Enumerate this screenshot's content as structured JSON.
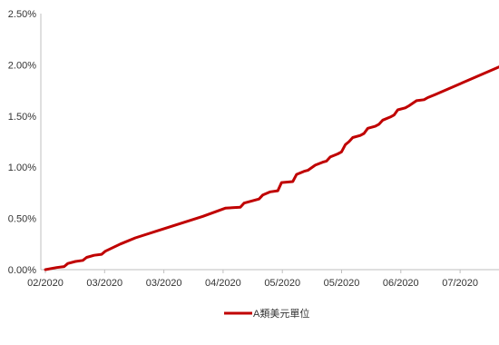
{
  "chart_data": {
    "type": "line",
    "title": "",
    "xlabel": "",
    "ylabel": "",
    "y_ticks": [
      "0.00%",
      "0.50%",
      "1.00%",
      "1.50%",
      "2.00%",
      "2.50%"
    ],
    "x_ticks": [
      "02/2020",
      "03/2020",
      "03/2020",
      "04/2020",
      "05/2020",
      "05/2020",
      "06/2020",
      "07/2020"
    ],
    "ylim": [
      0,
      2.5
    ],
    "grid": false,
    "legend_position": "bottom-center",
    "series": [
      {
        "name": "A類美元單位",
        "color": "#c00000",
        "points": [
          [
            0,
            0.0
          ],
          [
            3,
            0.02
          ],
          [
            5,
            0.03
          ],
          [
            6,
            0.06
          ],
          [
            8,
            0.08
          ],
          [
            10,
            0.09
          ],
          [
            11,
            0.12
          ],
          [
            13,
            0.14
          ],
          [
            15,
            0.15
          ],
          [
            16,
            0.18
          ],
          [
            20,
            0.25
          ],
          [
            24,
            0.31
          ],
          [
            30,
            0.38
          ],
          [
            36,
            0.45
          ],
          [
            42,
            0.52
          ],
          [
            48,
            0.6
          ],
          [
            52,
            0.61
          ],
          [
            53,
            0.65
          ],
          [
            55,
            0.67
          ],
          [
            57,
            0.69
          ],
          [
            58,
            0.73
          ],
          [
            60,
            0.76
          ],
          [
            62,
            0.77
          ],
          [
            63,
            0.85
          ],
          [
            66,
            0.86
          ],
          [
            67,
            0.93
          ],
          [
            69,
            0.96
          ],
          [
            70,
            0.97
          ],
          [
            72,
            1.02
          ],
          [
            74,
            1.05
          ],
          [
            75,
            1.06
          ],
          [
            76,
            1.1
          ],
          [
            78,
            1.13
          ],
          [
            79,
            1.15
          ],
          [
            80,
            1.22
          ],
          [
            81,
            1.25
          ],
          [
            82,
            1.29
          ],
          [
            84,
            1.31
          ],
          [
            85,
            1.33
          ],
          [
            86,
            1.38
          ],
          [
            88,
            1.4
          ],
          [
            89,
            1.42
          ],
          [
            90,
            1.46
          ],
          [
            92,
            1.49
          ],
          [
            93,
            1.51
          ],
          [
            94,
            1.56
          ],
          [
            96,
            1.58
          ],
          [
            97,
            1.6
          ],
          [
            99,
            1.65
          ],
          [
            101,
            1.66
          ],
          [
            102,
            1.68
          ],
          [
            104,
            1.71
          ],
          [
            121,
            1.98
          ]
        ]
      }
    ]
  }
}
